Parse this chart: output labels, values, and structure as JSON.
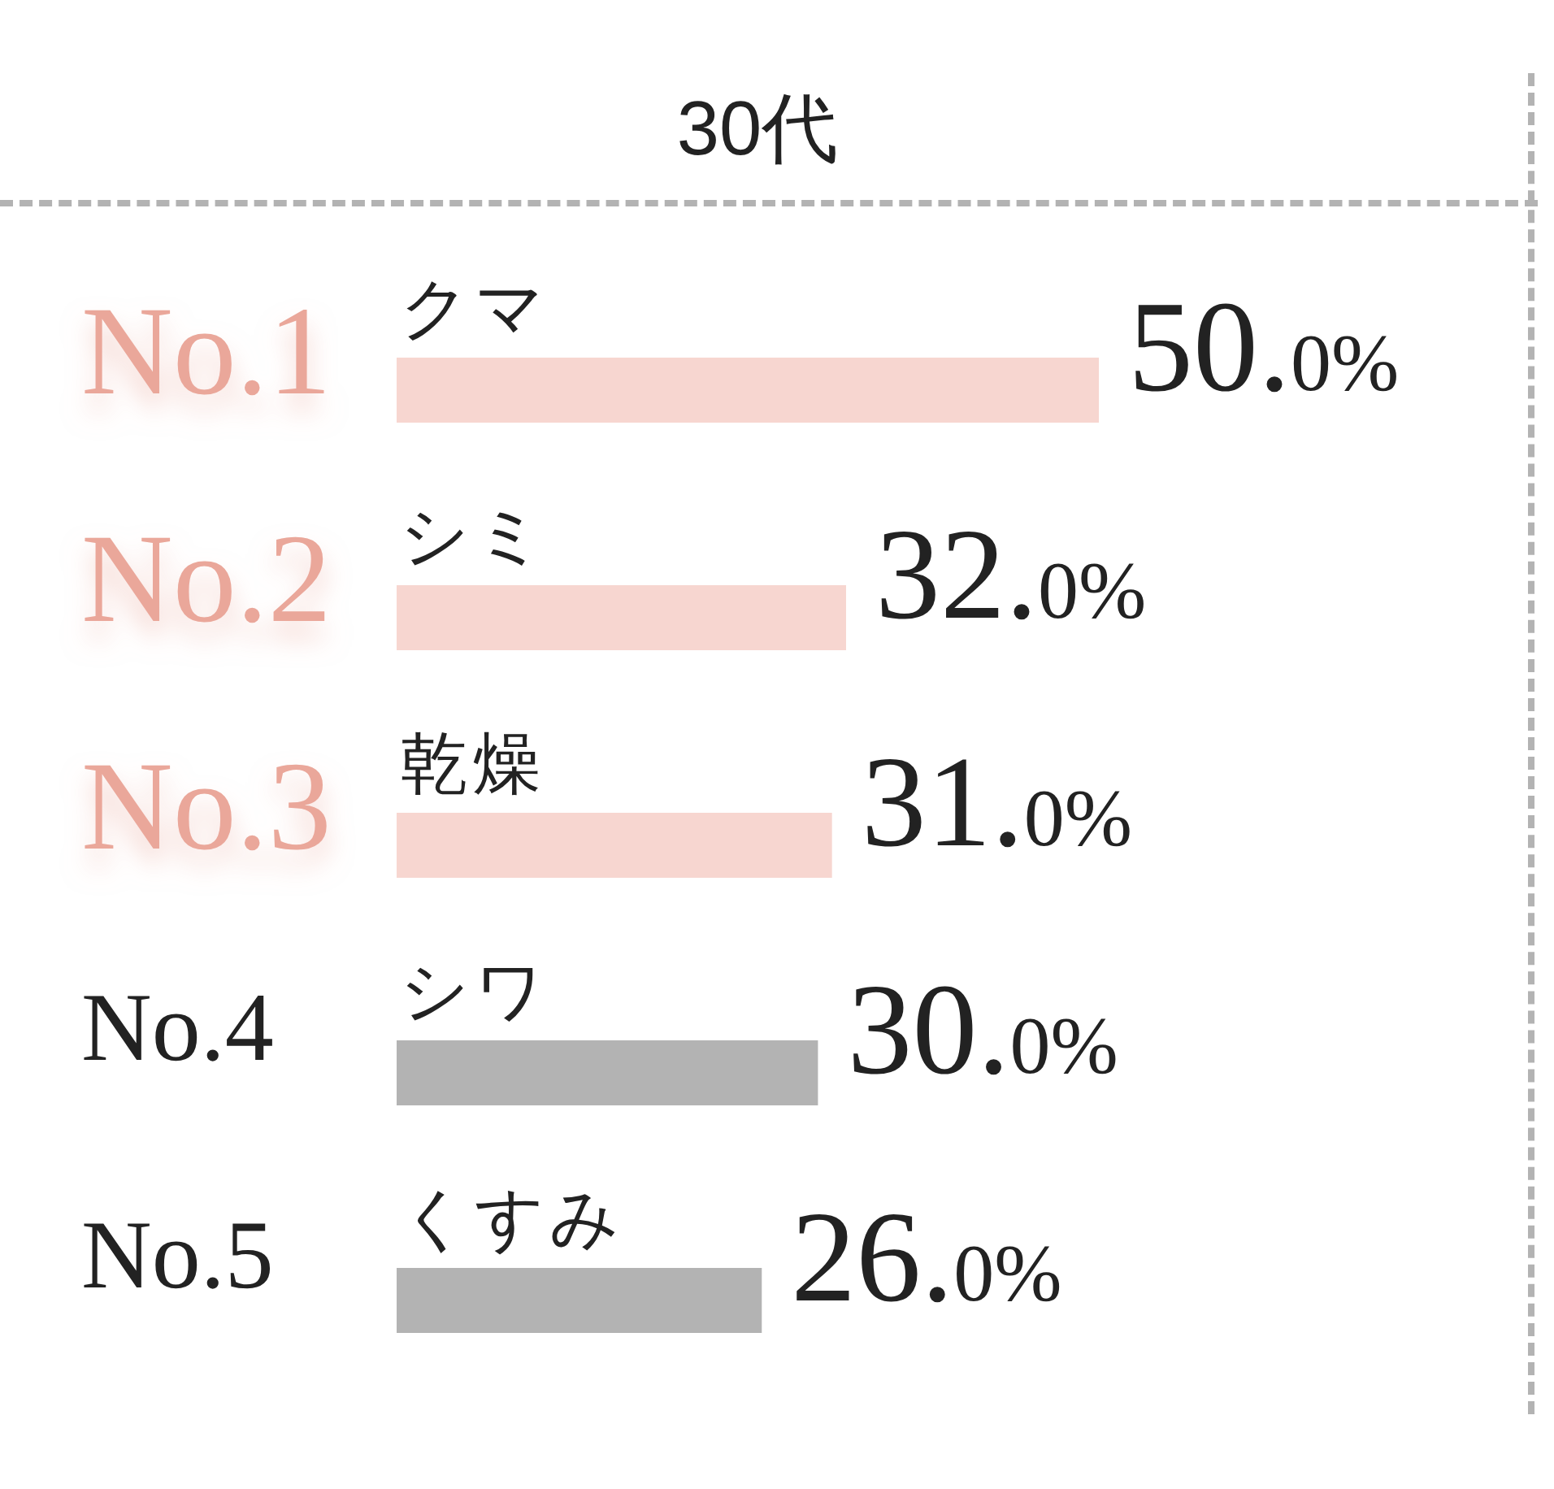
{
  "chart_data": {
    "type": "bar",
    "orientation": "horizontal",
    "title": "30代",
    "categories": [
      "クマ",
      "シミ",
      "乾燥",
      "シワ",
      "くすみ"
    ],
    "values": [
      50.0,
      32.0,
      31.0,
      30.0,
      26.0
    ],
    "colors": [
      "#f7d6d0",
      "#f7d6d0",
      "#f7d6d0",
      "#b3b3b3",
      "#b3b3b3"
    ],
    "value_labels": [
      "50.0%",
      "32.0%",
      "31.0%",
      "30.0%",
      "26.0%"
    ],
    "annotations": [
      "No.1",
      "No.2",
      "No.3",
      "No.4",
      "No.5"
    ]
  }
}
